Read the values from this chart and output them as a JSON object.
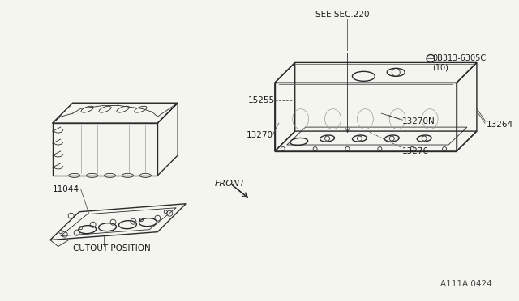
{
  "bg_color": "#f5f5f0",
  "line_color": "#2a2a2a",
  "label_color": "#1a1a1a",
  "title": "",
  "diagram_id": "A111A 0424",
  "labels": {
    "see_sec": "SEE SEC.220",
    "part_15255": "15255",
    "part_13270": "13270",
    "part_13270N": "13270N",
    "part_13264": "13264",
    "part_13276": "13276",
    "part_0B313": "0B313-6305C\n(10)",
    "part_11044": "11044",
    "cutout": "CUTOUT POSITION",
    "front": "FRONT"
  }
}
